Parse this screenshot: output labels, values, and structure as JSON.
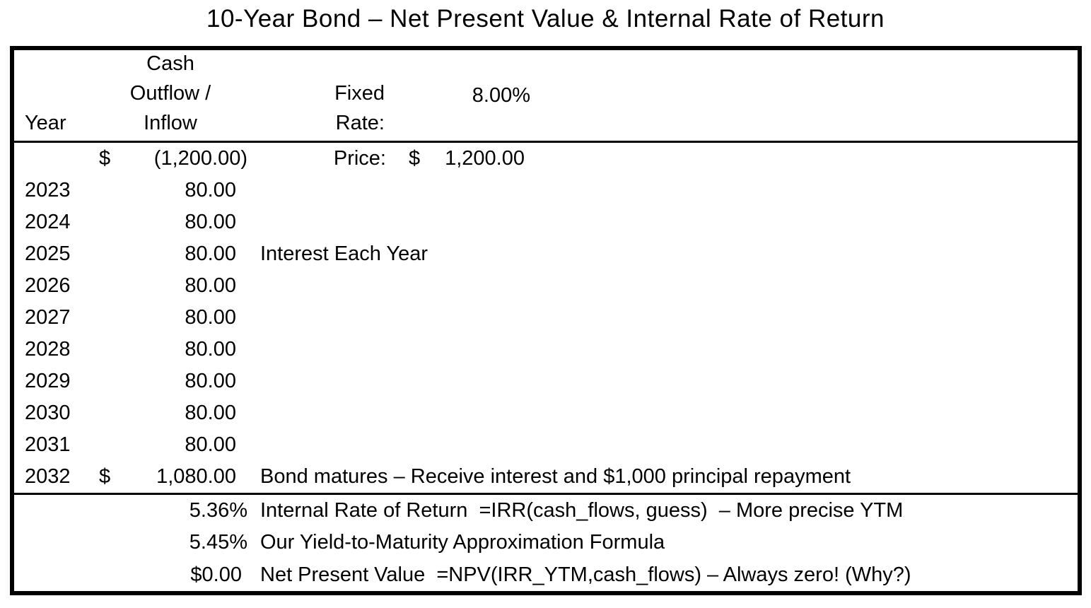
{
  "title": "10-Year Bond – Net Present Value & Internal Rate of Return",
  "colors": {
    "text": "#000000",
    "background": "#ffffff",
    "border": "#000000"
  },
  "table": {
    "header": {
      "year_label": "Year",
      "cash_label": "Cash Outflow / Inflow",
      "rate_label": "Fixed Rate:",
      "rate_value": "8.00%"
    },
    "price_row": {
      "currency": "$",
      "amount": "(1,200.00)",
      "label": "Price:",
      "value_currency": "$",
      "value_amount": "1,200.00"
    },
    "cashflow_rows": [
      {
        "year": "2023",
        "currency": "",
        "amount": "80.00",
        "note": ""
      },
      {
        "year": "2024",
        "currency": "",
        "amount": "80.00",
        "note": ""
      },
      {
        "year": "2025",
        "currency": "",
        "amount": "80.00",
        "note": "Interest Each Year"
      },
      {
        "year": "2026",
        "currency": "",
        "amount": "80.00",
        "note": ""
      },
      {
        "year": "2027",
        "currency": "",
        "amount": "80.00",
        "note": ""
      },
      {
        "year": "2028",
        "currency": "",
        "amount": "80.00",
        "note": ""
      },
      {
        "year": "2029",
        "currency": "",
        "amount": "80.00",
        "note": ""
      },
      {
        "year": "2030",
        "currency": "",
        "amount": "80.00",
        "note": ""
      },
      {
        "year": "2031",
        "currency": "",
        "amount": "80.00",
        "note": ""
      },
      {
        "year": "2032",
        "currency": "$",
        "amount": "1,080.00",
        "note": "Bond matures – Receive interest and $1,000 principal repayment"
      }
    ],
    "summary_rows": [
      {
        "value": "5.36%",
        "note": "Internal Rate of Return  =IRR(cash_flows, guess)  – More precise YTM"
      },
      {
        "value": "5.45%",
        "note": "Our Yield-to-Maturity Approximation Formula"
      },
      {
        "value": "$0.00",
        "note": "Net Present Value  =NPV(IRR_YTM,cash_flows) – Always zero! (Why?)"
      }
    ]
  },
  "chart_data": {
    "type": "table",
    "title": "10-Year Bond – Net Present Value & Internal Rate of Return",
    "columns": [
      "Year",
      "Cash Outflow / Inflow"
    ],
    "rows": [
      [
        "",
        -1200.0
      ],
      [
        "2023",
        80.0
      ],
      [
        "2024",
        80.0
      ],
      [
        "2025",
        80.0
      ],
      [
        "2026",
        80.0
      ],
      [
        "2027",
        80.0
      ],
      [
        "2028",
        80.0
      ],
      [
        "2029",
        80.0
      ],
      [
        "2030",
        80.0
      ],
      [
        "2031",
        80.0
      ],
      [
        "2032",
        1080.0
      ]
    ],
    "annotations": {
      "fixed_rate": "8.00%",
      "price": "$1,200.00",
      "interest_note": "Interest Each Year",
      "maturity_note": "Bond matures – Receive interest and $1,000 principal repayment",
      "irr": "5.36%",
      "ytm_approximation": "5.45%",
      "npv": "$0.00"
    }
  }
}
